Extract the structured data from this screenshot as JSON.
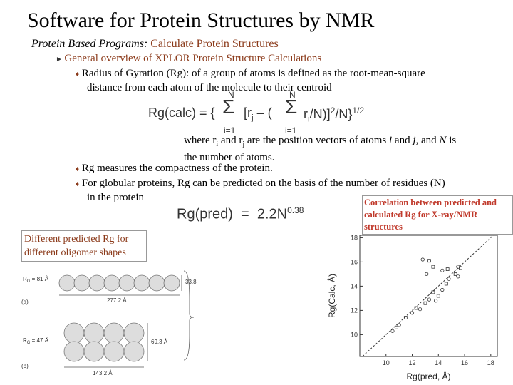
{
  "header": {
    "title": "Software for Protein Structures by NMR",
    "subtitle_label": "Protein Based Programs:",
    "subtitle_text": " Calculate Protein Structures"
  },
  "outline": {
    "heading": "General overview of XPLOR Protein Structure Calculations",
    "bullets": [
      {
        "lines": [
          "Radius of Gyration (Rg): of a group of atoms is defined as the root-mean-square",
          "distance from each atom of the molecule to their centroid"
        ]
      },
      {
        "lines": [
          "Rg measures the compactness of the protein."
        ]
      },
      {
        "lines": [
          "For globular proteins, Rg can be predicted on the basis of the number of residues (N)",
          "in the protein"
        ]
      }
    ]
  },
  "formula_calc": {
    "lhs": "Rg(calc) = {",
    "sum1_top": "N",
    "sum1_bottom": "i=1",
    "sum2_top": "N",
    "sum2_bottom": "i=1",
    "body1": "[r",
    "body1_sub": "j",
    "body2": " – (",
    "body3": "r",
    "body3_sub": "i",
    "body4": "/N)]",
    "sq": "2",
    "body5": "/N}",
    "exp": "1/2"
  },
  "where_note": {
    "line1": [
      "where r",
      "i",
      " and r",
      "j",
      " are the position vectors of atoms ",
      "i",
      " and ",
      "j",
      ", and ",
      "N",
      " is"
    ],
    "line2": "the number of atoms."
  },
  "formula_pred": {
    "lhs": "Rg(pred)",
    "eq": "=",
    "coef": "2.2N",
    "exp": "0.38"
  },
  "correlation_box": "Correlation between predicted and calculated Rg for X-ray/NMR structures",
  "oligomer_box": "Different predicted Rg for different oligomer shapes",
  "oligomer_figure": {
    "a": {
      "rg": [
        "R",
        "G",
        " = 81 Å"
      ],
      "length": "277.2 Å",
      "height": "33.8",
      "tag": "(a)"
    },
    "b": {
      "rg": [
        "R",
        "G",
        " = 47 Å"
      ],
      "height": "69.3 Å",
      "length": "143.2 Å",
      "tag": "(b)"
    }
  },
  "scatter_plot": {
    "ylabel": "Rg(Calc, Å)",
    "xlabel": "Rg(pred, Å)",
    "xlim": [
      8,
      18.5
    ],
    "ylim": [
      8.2,
      18.2
    ],
    "xticks": [
      10,
      12,
      14,
      16,
      18
    ],
    "yticks": [
      10,
      12,
      14,
      16,
      18
    ],
    "x": [
      10.5,
      10.8,
      11,
      11.5,
      12,
      12.3,
      12.6,
      13,
      13.3,
      13.6,
      13.8,
      14,
      14.3,
      14.6,
      14.8,
      15.3,
      15.5,
      15.7,
      13.1,
      13.6,
      12.8,
      13.3,
      14.3,
      14.7,
      15.5
    ],
    "y": [
      10.3,
      10.6,
      10.8,
      11.4,
      11.8,
      12.2,
      12.1,
      12.6,
      12.9,
      13.5,
      12.8,
      13.2,
      13.7,
      14.2,
      14.6,
      15,
      14.8,
      15.5,
      15,
      15.6,
      16.2,
      16.1,
      15.3,
      15.4,
      15.6
    ]
  }
}
